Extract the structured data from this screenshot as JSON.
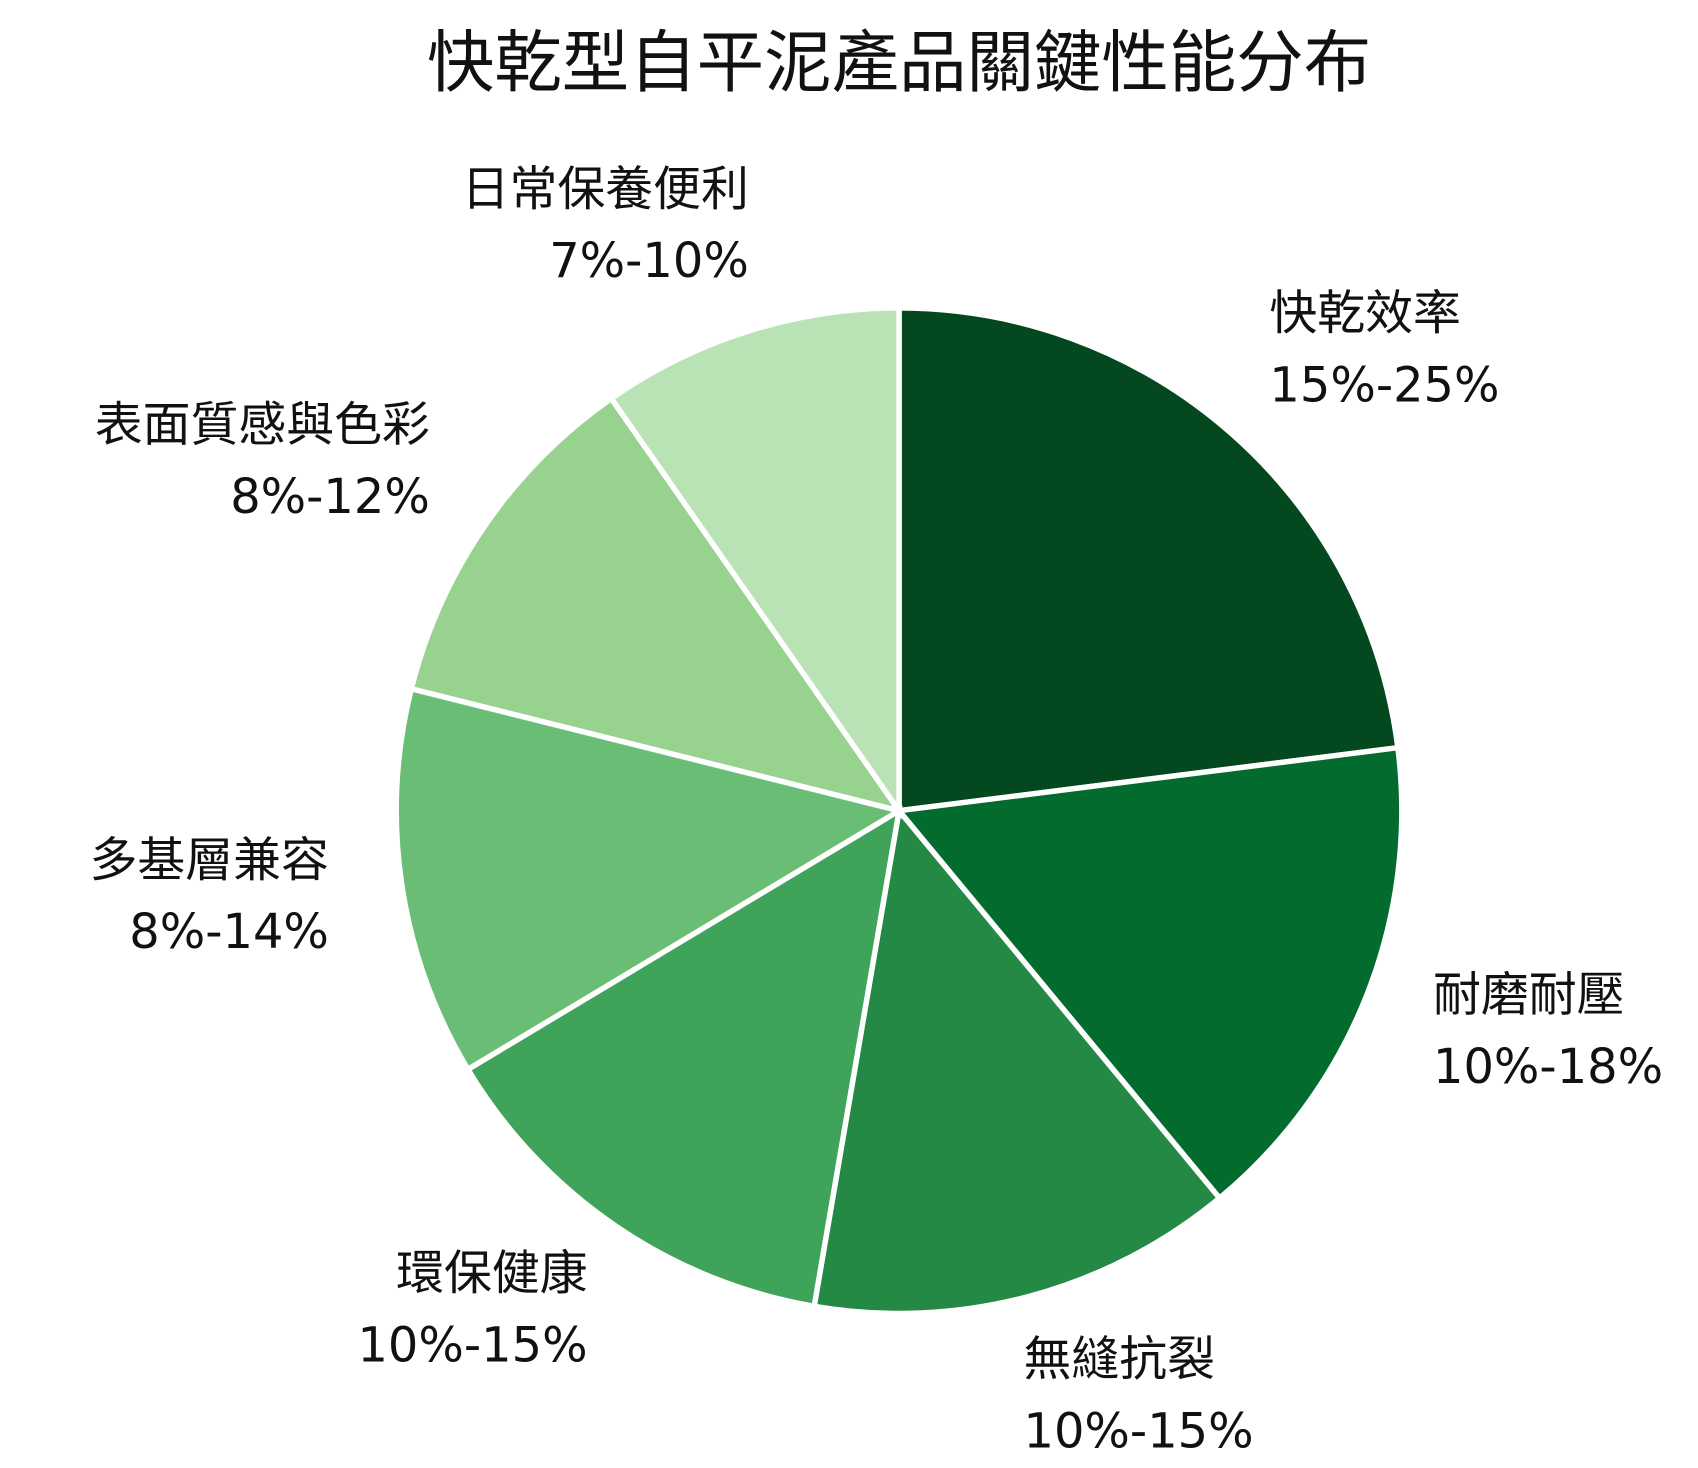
{
  "chart_data": {
    "type": "pie",
    "title": "快乾型自平泥產品關鍵性能分布",
    "categories": [
      "快乾效率",
      "耐磨耐壓",
      "無縫抗裂",
      "環保健康",
      "多基層兼容",
      "表面質感與色彩",
      "日常保養便利"
    ],
    "ranges": [
      "15%-25%",
      "10%-18%",
      "10%-15%",
      "10%-15%",
      "8%-14%",
      "8%-12%",
      "7%-10%"
    ],
    "values": [
      23,
      16,
      13.7,
      13.7,
      12.5,
      11.4,
      9.7
    ],
    "colors": [
      "#03481f",
      "#036b2d",
      "#238944",
      "#3fa45a",
      "#6abd74",
      "#97d38f",
      "#b9e3b4"
    ]
  }
}
